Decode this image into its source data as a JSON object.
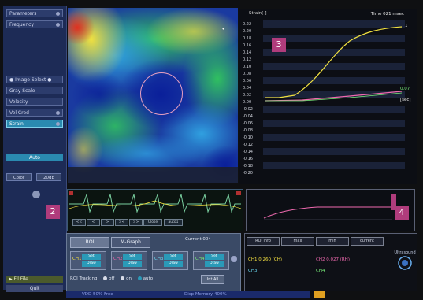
{
  "left_panel": {
    "top_buttons": [
      "Parameters",
      "Frequency"
    ],
    "mode_items": [
      {
        "label": "● Image Select ●",
        "active": false
      },
      {
        "label": "Gray Scale",
        "active": false
      },
      {
        "label": "Velocity",
        "active": false
      },
      {
        "label": "Vel Cred",
        "active": false
      },
      {
        "label": "Strain",
        "active": true
      }
    ],
    "auto_label": "Auto",
    "color_label": "Color",
    "gain_label": "20db",
    "file_label": "Fil File",
    "quit_label": "Quit"
  },
  "badges": {
    "b3": "3",
    "b2": "2",
    "b4": "4"
  },
  "curve_panel": {
    "title": "Time 021 msec",
    "y_label": "Strain[-]",
    "y_ticks": [
      "0.22",
      "0.20",
      "0.18",
      "0.16",
      "0.14",
      "0.12",
      "0.10",
      "0.08",
      "0.06",
      "0.04",
      "0.02",
      "0.00",
      "-0.02",
      "-0.04",
      "-0.06",
      "-0.08",
      "-0.10",
      "-0.12",
      "-0.14",
      "-0.16",
      "-0.18",
      "-0.20"
    ],
    "end_label_yellow": "1",
    "end_label_green": "0.07",
    "unit_label": "[sec]"
  },
  "ecg_panel": {
    "buttons": [
      "<<",
      "<",
      ">",
      "><",
      ">>",
      "Close",
      "auto1"
    ]
  },
  "tool_panel": {
    "tab_roi": "ROI",
    "tab_m": "M-Graph",
    "current_label": "Current 004",
    "channels": [
      {
        "label": "CH1",
        "color": "#f4e040",
        "set": "Set",
        "draw": "Draw"
      },
      {
        "label": "CH2",
        "color": "#f06ab0",
        "set": "Set",
        "draw": "Draw"
      },
      {
        "label": "CH3",
        "color": "#6ad8f0",
        "set": "Set",
        "draw": "Draw"
      },
      {
        "label": "CH4",
        "color": "#7af07a",
        "set": "Set",
        "draw": "Draw"
      }
    ],
    "roi_tracking": "ROI Tracking",
    "opt_off": "off",
    "opt_on": "on",
    "opt_auto": "auto",
    "init_all": "Int All"
  },
  "roi_panel": {
    "tabs": [
      "ROI info",
      "max",
      "min",
      "current"
    ],
    "ch1": "CH1  0.260 (CH)",
    "ch2": "CH2  0.027 (RH)",
    "ch3": "CH3",
    "ch4": "CH4"
  },
  "status_bar": {
    "left": "VDD 50% Free",
    "right": "Disp Memory 400%"
  },
  "logo_text": "Ultrasound"
}
